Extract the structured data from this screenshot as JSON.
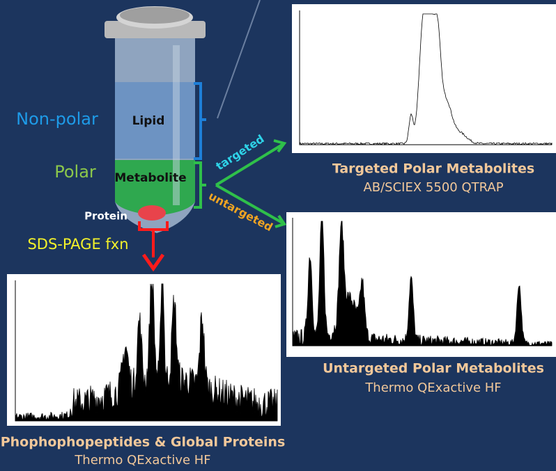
{
  "tube": {
    "nonpolar_label": "Non-polar",
    "lipid_label": "Lipid",
    "polar_label": "Polar",
    "metabolite_label": "Metabolite",
    "protein_label": "Protein",
    "sds_label": "SDS-PAGE fxn"
  },
  "arrows": {
    "targeted": "targeted",
    "untargeted": "untargeted"
  },
  "panels": [
    {
      "title": "Targeted Polar Metabolites",
      "instrument": "AB/SCIEX 5500 QTRAP"
    },
    {
      "title": "Untargeted Polar Metabolites",
      "instrument": "Thermo QExactive HF"
    },
    {
      "title": "Phophophopeptides & Global Proteins",
      "instrument": "Thermo QExactive HF"
    }
  ]
}
